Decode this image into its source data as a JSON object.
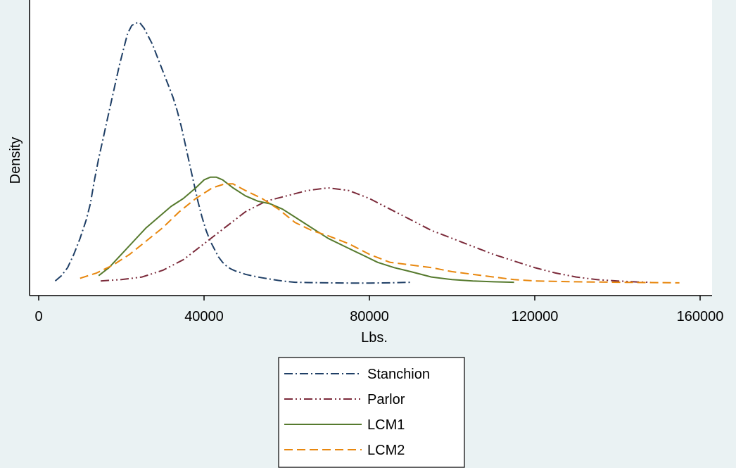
{
  "chart_data": {
    "type": "line",
    "title": "",
    "xlabel": "Lbs.",
    "ylabel": "Density",
    "xlim": [
      -2000,
      160000
    ],
    "ylim": [
      0,
      1.0
    ],
    "x_ticks": [
      0,
      40000,
      80000,
      120000,
      160000
    ],
    "x_tick_labels": [
      "0",
      "40000",
      "80000",
      "120000",
      "160000"
    ],
    "grid": false,
    "legend_position": "bottom",
    "plot_background": "#ffffff",
    "page_background": "#eaf2f3",
    "series": [
      {
        "name": "Stanchion",
        "color": "#1f3f66",
        "dash": "dash-dot",
        "x": [
          4000,
          5500,
          7000,
          8500,
          10000,
          11500,
          12500,
          13500,
          14500,
          15500,
          16500,
          17500,
          18500,
          19500,
          20500,
          21500,
          22500,
          23500,
          24500,
          25500,
          26500,
          27500,
          28500,
          29500,
          30500,
          31500,
          32500,
          33500,
          34500,
          35500,
          36500,
          37500,
          38500,
          39500,
          40500,
          41500,
          42500,
          43500,
          44500,
          45500,
          46500,
          47500,
          48500,
          50000,
          52000,
          54000,
          56000,
          58000,
          60000,
          62000,
          65000,
          70000,
          75000,
          80000,
          85000,
          90000
        ],
        "y": [
          0.01,
          0.03,
          0.06,
          0.11,
          0.17,
          0.24,
          0.3,
          0.39,
          0.47,
          0.54,
          0.61,
          0.68,
          0.75,
          0.82,
          0.88,
          0.94,
          0.97,
          0.98,
          0.98,
          0.96,
          0.93,
          0.9,
          0.86,
          0.82,
          0.78,
          0.74,
          0.7,
          0.65,
          0.59,
          0.52,
          0.45,
          0.38,
          0.31,
          0.25,
          0.2,
          0.16,
          0.13,
          0.1,
          0.08,
          0.065,
          0.055,
          0.048,
          0.043,
          0.035,
          0.028,
          0.022,
          0.017,
          0.012,
          0.008,
          0.005,
          0.004,
          0.003,
          0.002,
          0.002,
          0.003,
          0.005
        ]
      },
      {
        "name": "Parlor",
        "color": "#7b2a3a",
        "dash": "dash-dot-dot",
        "x": [
          15000,
          20000,
          25000,
          30000,
          35000,
          40000,
          45000,
          50000,
          55000,
          60000,
          65000,
          70000,
          75000,
          80000,
          85000,
          90000,
          95000,
          100000,
          105000,
          110000,
          115000,
          120000,
          125000,
          130000,
          135000,
          140000,
          145000,
          148000
        ],
        "y": [
          0.01,
          0.015,
          0.025,
          0.05,
          0.09,
          0.15,
          0.21,
          0.27,
          0.31,
          0.33,
          0.35,
          0.36,
          0.35,
          0.32,
          0.28,
          0.24,
          0.2,
          0.17,
          0.14,
          0.11,
          0.085,
          0.06,
          0.04,
          0.025,
          0.015,
          0.01,
          0.006,
          0.005
        ]
      },
      {
        "name": "LCM1",
        "color": "#567a2e",
        "dash": "solid",
        "x": [
          14500,
          17000,
          20000,
          23000,
          26000,
          29000,
          32000,
          35000,
          38000,
          40000,
          41500,
          43000,
          44500,
          47000,
          50000,
          53000,
          56000,
          59000,
          62000,
          66000,
          70000,
          74000,
          78000,
          82000,
          86000,
          90000,
          95000,
          100000,
          105000,
          110000,
          115000
        ],
        "y": [
          0.03,
          0.06,
          0.11,
          0.16,
          0.21,
          0.25,
          0.29,
          0.32,
          0.36,
          0.39,
          0.4,
          0.4,
          0.39,
          0.36,
          0.33,
          0.31,
          0.3,
          0.28,
          0.25,
          0.21,
          0.17,
          0.14,
          0.11,
          0.08,
          0.06,
          0.045,
          0.025,
          0.015,
          0.01,
          0.007,
          0.005
        ]
      },
      {
        "name": "LCM2",
        "color": "#e8870e",
        "dash": "dashed",
        "x": [
          10000,
          14000,
          18000,
          22000,
          26000,
          30000,
          34000,
          38000,
          42000,
          45000,
          47000,
          50000,
          54000,
          58000,
          62000,
          66000,
          70000,
          75000,
          80000,
          85000,
          90000,
          95000,
          100000,
          105000,
          110000,
          115000,
          120000,
          130000,
          140000,
          148000,
          155000
        ],
        "y": [
          0.02,
          0.04,
          0.07,
          0.11,
          0.16,
          0.21,
          0.27,
          0.32,
          0.36,
          0.375,
          0.375,
          0.35,
          0.32,
          0.28,
          0.23,
          0.2,
          0.18,
          0.15,
          0.11,
          0.08,
          0.07,
          0.06,
          0.045,
          0.035,
          0.025,
          0.015,
          0.01,
          0.007,
          0.005,
          0.004,
          0.003
        ]
      }
    ]
  }
}
